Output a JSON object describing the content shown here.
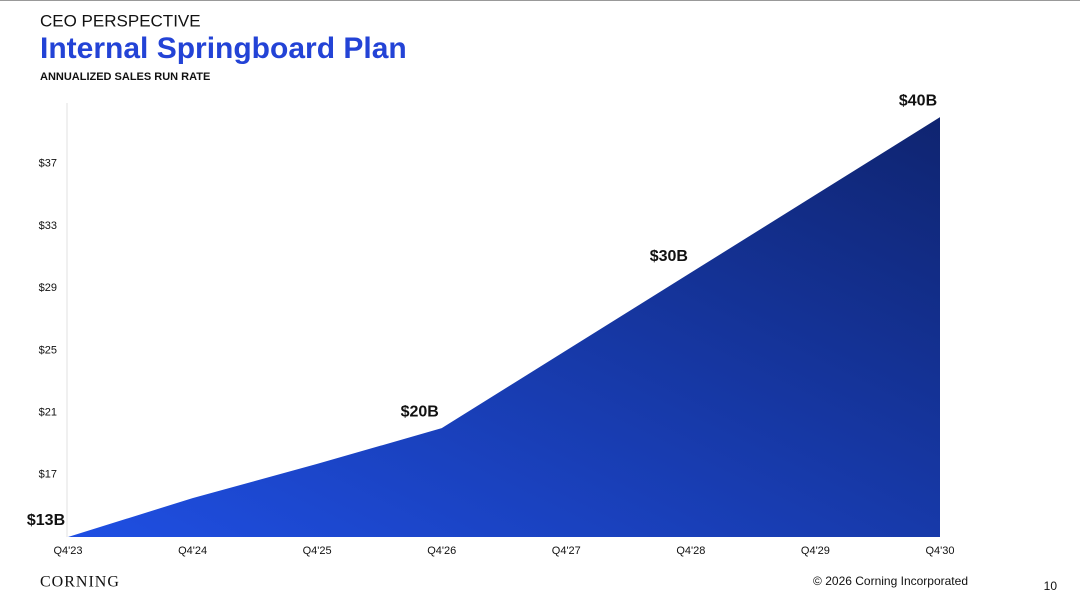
{
  "header": {
    "kicker": "CEO PERSPECTIVE"
  },
  "chart_data": {
    "type": "area",
    "title": "Internal Springboard Plan",
    "subtitle": "ANNUALIZED SALES RUN RATE",
    "categories": [
      "Q4'23",
      "Q4'24",
      "Q4'25",
      "Q4'26",
      "Q4'27",
      "Q4'28",
      "Q4'29",
      "Q4'30"
    ],
    "values": [
      13,
      15.5,
      17.7,
      20,
      25,
      30,
      35,
      40
    ],
    "value_labels": [
      "$13B",
      null,
      null,
      "$20B",
      null,
      "$30B",
      null,
      "$40B"
    ],
    "colors": [
      "#1f4fe3",
      "#0f2470"
    ],
    "ylim": [
      13,
      41
    ],
    "yticks": [
      {
        "value": 17,
        "label": "$17"
      },
      {
        "value": 21,
        "label": "$21"
      },
      {
        "value": 25,
        "label": "$25"
      },
      {
        "value": 29,
        "label": "$29"
      },
      {
        "value": 33,
        "label": "$33"
      },
      {
        "value": 37,
        "label": "$37"
      }
    ]
  },
  "footer": {
    "logo": "CORNING",
    "copyright": "© 2026 Corning Incorporated",
    "page": "10"
  }
}
